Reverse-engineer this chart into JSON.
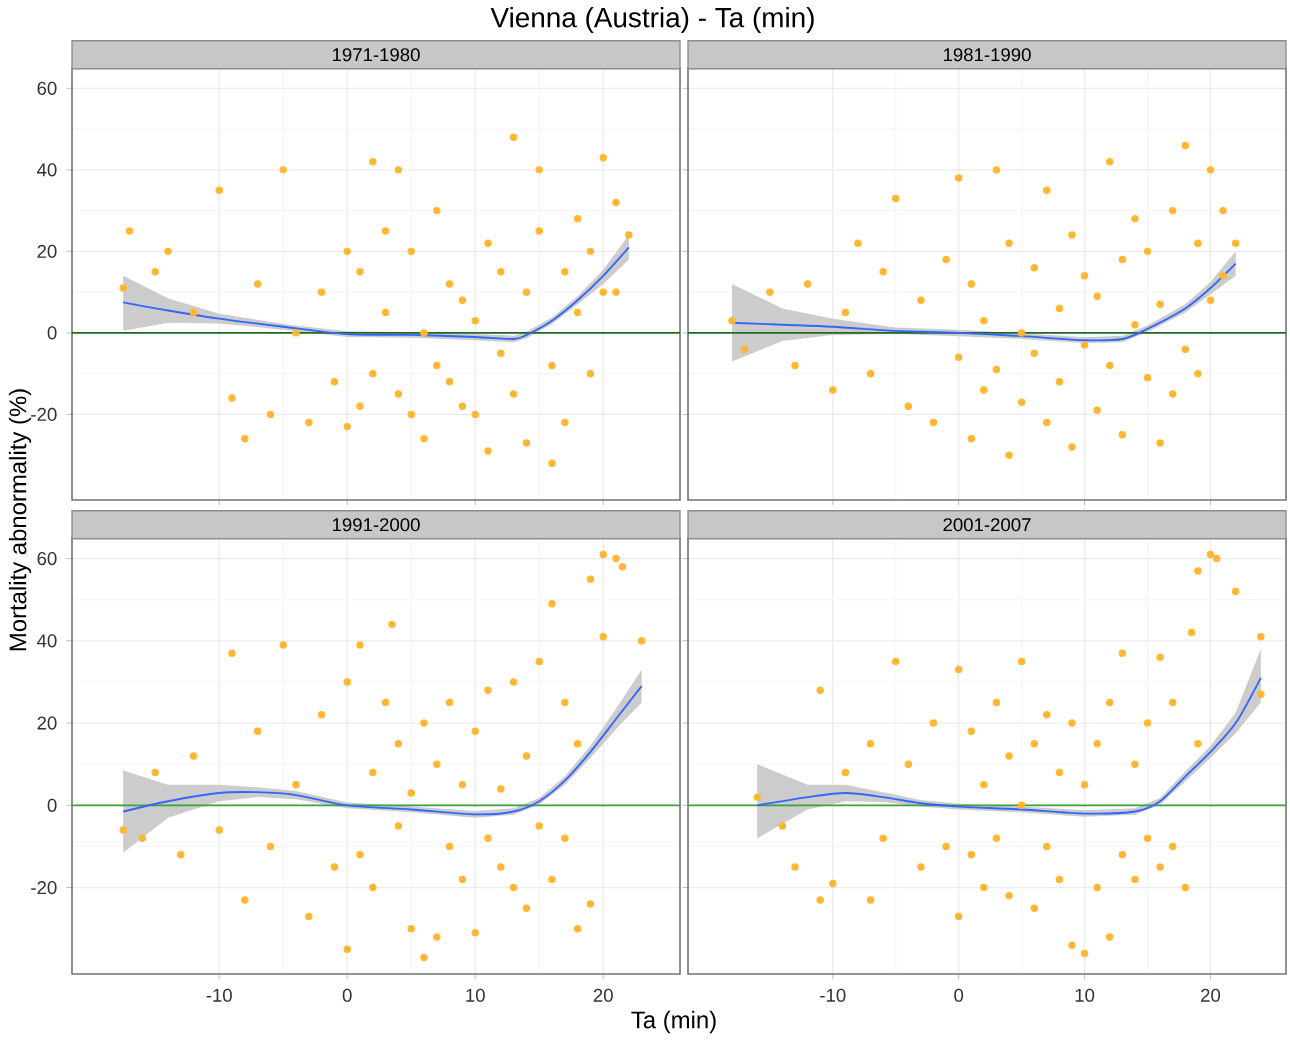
{
  "chart_data": [
    {
      "type": "scatter",
      "title": "Vienna (Austria) - Ta (min)",
      "subtitle": "1971-1980",
      "ylabel": "Mortality abnormality (%)",
      "xlim": [
        -21.5,
        26
      ],
      "ylim": [
        -41,
        65
      ],
      "xticks": [
        -10,
        0,
        10,
        20
      ],
      "yticks": [
        -20,
        0,
        20,
        40,
        60
      ],
      "grid": true,
      "tick_labels": "y",
      "ref_lines": [
        {
          "axis": "y",
          "value": 0,
          "color": "#1e6b1e"
        }
      ],
      "series": [
        {
          "marker": "circle",
          "color": "#ffb733",
          "x": [
            -17.5,
            -17,
            -15,
            -14,
            -12,
            -10,
            -9,
            -8,
            -7,
            -6,
            -5,
            -4,
            -3,
            -2,
            -1,
            0,
            0,
            1,
            1,
            2,
            2,
            3,
            3,
            4,
            4,
            5,
            5,
            6,
            6,
            7,
            7,
            8,
            8,
            9,
            9,
            10,
            10,
            11,
            11,
            12,
            12,
            13,
            13,
            14,
            14,
            15,
            15,
            16,
            16,
            17,
            17,
            18,
            18,
            19,
            19,
            20,
            20,
            21,
            21,
            22
          ],
          "values": [
            11,
            25,
            15,
            20,
            5,
            35,
            -16,
            -26,
            12,
            -20,
            40,
            0,
            -22,
            10,
            -12,
            -23,
            20,
            15,
            -18,
            42,
            -10,
            25,
            5,
            40,
            -15,
            20,
            -20,
            -26,
            0,
            30,
            -8,
            12,
            -12,
            8,
            -18,
            3,
            -20,
            22,
            -29,
            15,
            -5,
            48,
            -15,
            -27,
            10,
            25,
            40,
            -8,
            -32,
            15,
            -22,
            5,
            28,
            -10,
            20,
            43,
            10,
            32,
            10,
            24
          ]
        },
        {
          "type": "line",
          "color": "#3366ff",
          "x": [
            -17.5,
            -14,
            -10,
            -5,
            0,
            5,
            10,
            13,
            14,
            16,
            18,
            20,
            22
          ],
          "values": [
            7.5,
            5.5,
            3.5,
            1.5,
            -0.3,
            -0.5,
            -1,
            -1.5,
            -0.5,
            3,
            8,
            14,
            21
          ],
          "lower": [
            0.5,
            2.5,
            2.3,
            0.8,
            -1,
            -1.2,
            -1.8,
            -2.3,
            -1.3,
            2.2,
            7,
            12,
            18
          ],
          "upper": [
            14,
            8.5,
            4.7,
            2.2,
            0.4,
            0.2,
            -0.2,
            -0.7,
            0.3,
            3.8,
            9,
            15.5,
            24
          ]
        }
      ]
    },
    {
      "type": "scatter",
      "subtitle": "1981-1990",
      "xlim": [
        -21.5,
        26
      ],
      "ylim": [
        -41,
        65
      ],
      "xticks": [
        -10,
        0,
        10,
        20
      ],
      "yticks": [
        -20,
        0,
        20,
        40,
        60
      ],
      "grid": true,
      "tick_labels": false,
      "ref_lines": [
        {
          "axis": "y",
          "value": 0,
          "color": "#1e6b1e"
        }
      ],
      "series": [
        {
          "marker": "circle",
          "color": "#ffb733",
          "x": [
            -18,
            -17,
            -15,
            -13,
            -12,
            -10,
            -9,
            -8,
            -7,
            -6,
            -5,
            -4,
            -3,
            -2,
            -1,
            0,
            0,
            1,
            1,
            2,
            2,
            3,
            3,
            4,
            4,
            5,
            5,
            6,
            6,
            7,
            7,
            8,
            8,
            9,
            9,
            10,
            10,
            11,
            11,
            12,
            12,
            13,
            13,
            14,
            14,
            15,
            15,
            16,
            16,
            17,
            17,
            18,
            18,
            19,
            19,
            20,
            20,
            21,
            21,
            22
          ],
          "values": [
            3,
            -4,
            10,
            -8,
            12,
            -14,
            5,
            22,
            -10,
            15,
            33,
            -18,
            8,
            -22,
            18,
            38,
            -6,
            -26,
            12,
            -14,
            3,
            40,
            -9,
            22,
            -30,
            0,
            -17,
            16,
            -5,
            35,
            -22,
            6,
            -12,
            24,
            -28,
            -3,
            14,
            -19,
            9,
            42,
            -8,
            18,
            -25,
            2,
            28,
            -11,
            20,
            -27,
            7,
            30,
            -15,
            46,
            -4,
            22,
            -10,
            40,
            8,
            30,
            14,
            22
          ]
        },
        {
          "type": "line",
          "color": "#3366ff",
          "x": [
            -18,
            -14,
            -10,
            -5,
            0,
            5,
            10,
            13,
            15,
            18,
            20,
            22
          ],
          "values": [
            2.5,
            2,
            1.5,
            0.5,
            0,
            -0.8,
            -1.8,
            -1.5,
            1,
            6,
            11,
            17
          ],
          "lower": [
            -7,
            -2,
            -0.5,
            -0.3,
            -0.8,
            -1.5,
            -2.5,
            -2.3,
            0.2,
            5,
            9.5,
            14
          ],
          "upper": [
            12,
            6,
            3.5,
            1.3,
            0.8,
            -0.1,
            -1.1,
            -0.7,
            1.8,
            7,
            12.5,
            20
          ]
        }
      ]
    },
    {
      "type": "scatter",
      "subtitle": "1991-2000",
      "xlabel": "Ta (min)",
      "xlim": [
        -21.5,
        26
      ],
      "ylim": [
        -41,
        65
      ],
      "xticks": [
        -10,
        0,
        10,
        20
      ],
      "yticks": [
        -20,
        0,
        20,
        40,
        60
      ],
      "grid": true,
      "ref_lines": [
        {
          "axis": "y",
          "value": 0,
          "color": "#3fa03f"
        }
      ],
      "series": [
        {
          "marker": "circle",
          "color": "#ffb733",
          "x": [
            -17.5,
            -16,
            -15,
            -13,
            -12,
            -10,
            -9,
            -8,
            -7,
            -6,
            -5,
            -4,
            -3,
            -2,
            -1,
            0,
            0,
            1,
            1,
            2,
            2,
            3,
            3.5,
            4,
            4,
            5,
            5,
            6,
            6,
            7,
            7,
            8,
            8,
            9,
            9,
            10,
            10,
            11,
            11,
            12,
            12,
            13,
            13,
            14,
            14,
            15,
            15,
            16,
            16,
            17,
            17,
            18,
            18,
            19,
            19,
            20,
            20,
            21,
            21.5,
            23
          ],
          "values": [
            -6,
            -8,
            8,
            -12,
            12,
            -6,
            37,
            -23,
            18,
            -10,
            39,
            5,
            -27,
            22,
            -15,
            -35,
            30,
            39,
            -12,
            8,
            -20,
            25,
            44,
            -5,
            15,
            -30,
            3,
            -37,
            20,
            -32,
            10,
            -10,
            25,
            -18,
            5,
            -31,
            18,
            -8,
            28,
            -15,
            4,
            30,
            -20,
            12,
            -25,
            35,
            -5,
            49,
            -18,
            25,
            -8,
            -30,
            15,
            55,
            -24,
            61,
            41,
            60,
            58,
            40
          ]
        },
        {
          "type": "line",
          "color": "#3366ff",
          "x": [
            -17.5,
            -14,
            -10,
            -7,
            -4,
            0,
            5,
            10,
            13,
            15,
            17,
            19,
            21,
            23
          ],
          "values": [
            -1.5,
            1,
            3,
            3.2,
            2.5,
            0,
            -1,
            -2.2,
            -1.5,
            1,
            6,
            13,
            21,
            29
          ],
          "lower": [
            -11.5,
            -3,
            1,
            2,
            1.5,
            -0.7,
            -1.7,
            -3,
            -2.3,
            0.2,
            5,
            11.5,
            18.5,
            25
          ],
          "upper": [
            8.5,
            5,
            5,
            4.4,
            3.5,
            0.7,
            -0.3,
            -1.4,
            -0.7,
            1.8,
            7,
            14.5,
            23.5,
            33
          ]
        }
      ]
    },
    {
      "type": "scatter",
      "subtitle": "2001-2007",
      "xlim": [
        -21.5,
        26
      ],
      "ylim": [
        -41,
        65
      ],
      "xticks": [
        -10,
        0,
        10,
        20
      ],
      "yticks": [
        -20,
        0,
        20,
        40,
        60
      ],
      "grid": true,
      "tick_labels": "x",
      "ref_lines": [
        {
          "axis": "y",
          "value": 0,
          "color": "#3fa03f"
        }
      ],
      "series": [
        {
          "marker": "circle",
          "color": "#ffb733",
          "x": [
            -16,
            -14,
            -13,
            -11,
            -11,
            -10,
            -9,
            -7,
            -7,
            -6,
            -5,
            -4,
            -3,
            -2,
            -1,
            0,
            0,
            1,
            1,
            2,
            2,
            3,
            3,
            4,
            4,
            5,
            5,
            6,
            6,
            7,
            7,
            8,
            8,
            9,
            9,
            10,
            10,
            11,
            11,
            12,
            12,
            13,
            13,
            14,
            14,
            15,
            15,
            16,
            16,
            17,
            17,
            18,
            18.5,
            19,
            19,
            20,
            20.5,
            22,
            24,
            24
          ],
          "values": [
            2,
            -5,
            -15,
            28,
            -23,
            -19,
            8,
            -23,
            15,
            -8,
            35,
            10,
            -15,
            20,
            -10,
            -27,
            33,
            18,
            -12,
            5,
            -20,
            25,
            -8,
            12,
            -22,
            35,
            0,
            -25,
            15,
            -10,
            22,
            -18,
            8,
            -34,
            20,
            -36,
            5,
            15,
            -20,
            -32,
            25,
            37,
            -12,
            10,
            -18,
            20,
            -8,
            36,
            -15,
            25,
            -10,
            -20,
            42,
            57,
            15,
            61,
            60,
            52,
            41,
            27
          ]
        },
        {
          "type": "line",
          "color": "#3366ff",
          "x": [
            -16,
            -12,
            -9,
            -6,
            -3,
            0,
            5,
            10,
            14,
            16,
            18,
            20,
            22,
            24
          ],
          "values": [
            0,
            2,
            3,
            2,
            0.5,
            -0.3,
            -1,
            -2,
            -1.5,
            1,
            7,
            13,
            20,
            31
          ],
          "lower": [
            -8,
            -1,
            1,
            0.8,
            -0.3,
            -1,
            -1.7,
            -2.8,
            -2.3,
            0.2,
            5.8,
            11.5,
            17.5,
            25
          ],
          "upper": [
            10,
            5,
            5,
            3.2,
            1.3,
            0.4,
            -0.3,
            -1.2,
            -0.7,
            1.8,
            8.2,
            14.5,
            22.5,
            38
          ]
        }
      ]
    }
  ]
}
